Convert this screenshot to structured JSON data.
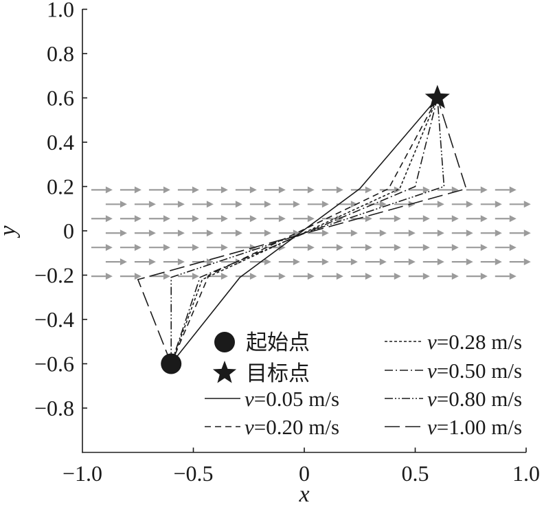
{
  "chart_data": {
    "type": "line",
    "xlabel": "x",
    "ylabel": "y",
    "xlim": [
      -1.0,
      1.0
    ],
    "ylim": [
      -1.0,
      1.0
    ],
    "grid": false,
    "xticks": [
      -1.0,
      -0.5,
      0,
      0.5,
      1.0
    ],
    "xtick_labels": [
      "−1.0",
      "−0.5",
      "0",
      "0.5",
      "1.0"
    ],
    "yticks": [
      1.0,
      0.8,
      0.6,
      0.4,
      0.2,
      0,
      -0.2,
      -0.4,
      -0.6,
      -0.8
    ],
    "ytick_labels": [
      "1.0",
      "0.8",
      "0.6",
      "0.4",
      "0.2",
      "0",
      "−0.2",
      "−0.4",
      "−0.6",
      "−0.8"
    ],
    "start_point": {
      "label": "起始点",
      "x": -0.6,
      "y": -0.6
    },
    "target_point": {
      "label": "目标点",
      "x": 0.6,
      "y": 0.6
    },
    "series": [
      {
        "label": "v=0.05 m/s",
        "x": [
          -0.6,
          -0.29,
          0.25,
          0.6
        ],
        "y": [
          -0.6,
          -0.21,
          0.19,
          0.6
        ]
      },
      {
        "label": "v=0.20 m/s",
        "x": [
          -0.6,
          -0.43,
          0.38,
          0.6
        ],
        "y": [
          -0.6,
          -0.2,
          0.19,
          0.6
        ]
      },
      {
        "label": "v=0.28 m/s",
        "x": [
          -0.6,
          -0.46,
          0.43,
          0.6
        ],
        "y": [
          -0.6,
          -0.22,
          0.19,
          0.6
        ]
      },
      {
        "label": "v=0.50 m/s",
        "x": [
          -0.6,
          -0.47,
          0.5,
          0.6
        ],
        "y": [
          -0.6,
          -0.21,
          0.2,
          0.6
        ]
      },
      {
        "label": "v=0.80 m/s",
        "x": [
          -0.6,
          -0.6,
          0.63,
          0.6
        ],
        "y": [
          -0.6,
          -0.21,
          0.2,
          0.6
        ]
      },
      {
        "label": "v=1.00 m/s",
        "x": [
          -0.6,
          -0.75,
          0.73,
          0.6
        ],
        "y": [
          -0.6,
          -0.22,
          0.19,
          0.6
        ]
      }
    ],
    "flow_field": {
      "direction": [
        1,
        0
      ],
      "y": [
        0.185,
        0.12,
        0.055,
        -0.01,
        -0.075,
        -0.14,
        -0.205
      ],
      "x_start": -0.96,
      "x_end": 0.93,
      "x_step": 0.13,
      "row_shift": 0.065
    }
  },
  "colors": {
    "ink": "#1a1a1a",
    "flow_arrow": "#9b9b9b",
    "background": "#ffffff"
  }
}
